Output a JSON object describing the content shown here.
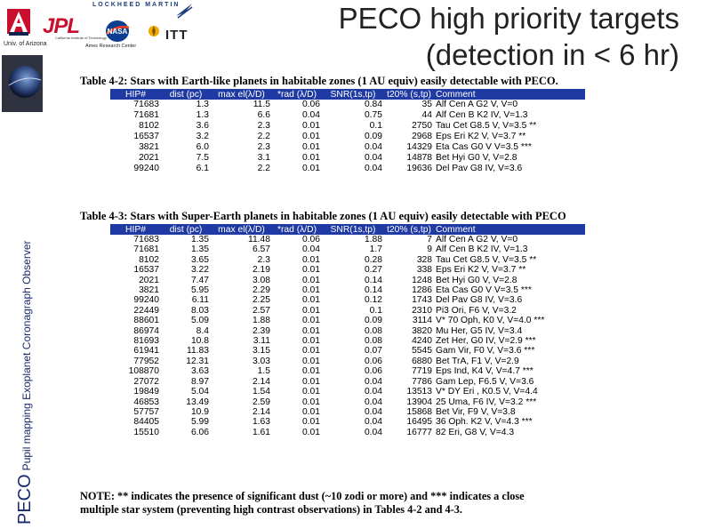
{
  "header": {
    "title_line1": "PECO high priority targets",
    "title_line2": "(detection in < 6 hr)",
    "side_label_big": "PECO",
    "side_label": "Pupil mapping Exoplanet Coronagraph Observer"
  },
  "logos": {
    "ua_text": "Univ. of Arizona",
    "jpl_text": "JPL",
    "jpl_sub": "California Institute of Technology",
    "lm_text": "LOCKHEED MARTIN",
    "ames_text": "Ames Research Center",
    "itt_text": "ITT"
  },
  "table1": {
    "caption": "Table 4-2: Stars with Earth-like planets in habitable zones (1 AU equiv) easily detectable with PECO.",
    "headers": [
      "HIP#",
      "dist (pc)",
      "max el(λ/D)",
      "*rad (λ/D)",
      "SNR(1s,tp)",
      "t20% (s,tp)",
      "Comment"
    ],
    "rows": [
      [
        "71683",
        "1.3",
        "11.5",
        "0.06",
        "0.84",
        "35",
        "Alf Cen A G2 V, V=0"
      ],
      [
        "71681",
        "1.3",
        "6.6",
        "0.04",
        "0.75",
        "44",
        "Alf Cen B K2 IV, V=1.3"
      ],
      [
        "8102",
        "3.6",
        "2.3",
        "0.01",
        "0.1",
        "2750",
        "Tau Cet G8.5 V, V=3.5 **"
      ],
      [
        "16537",
        "3.2",
        "2.2",
        "0.01",
        "0.09",
        "2968",
        "Eps Eri K2 V, V=3.7 **"
      ],
      [
        "3821",
        "6.0",
        "2.3",
        "0.01",
        "0.04",
        "14329",
        "Eta Cas G0 V V=3.5 ***"
      ],
      [
        "2021",
        "7.5",
        "3.1",
        "0.01",
        "0.04",
        "14878",
        "Bet Hyi G0 V, V=2.8"
      ],
      [
        "99240",
        "6.1",
        "2.2",
        "0.01",
        "0.04",
        "19636",
        "Del Pav G8 IV, V=3.6"
      ]
    ]
  },
  "table2": {
    "caption": "Table 4-3: Stars with Super-Earth planets in habitable zones (1 AU equiv) easily detectable with PECO",
    "headers": [
      "HIP#",
      "dist (pc)",
      "max el(λ/D)",
      "*rad (λ/D)",
      "SNR(1s,tp)",
      "t20% (s,tp)",
      "Comment"
    ],
    "rows": [
      [
        "71683",
        "1.35",
        "11.48",
        "0.06",
        "1.88",
        "7",
        "Alf Cen A G2 V, V=0"
      ],
      [
        "71681",
        "1.35",
        "6.57",
        "0.04",
        "1.7",
        "9",
        "Alf Cen B K2 IV, V=1.3"
      ],
      [
        "8102",
        "3.65",
        "2.3",
        "0.01",
        "0.28",
        "328",
        "Tau Cet G8.5 V, V=3.5 **"
      ],
      [
        "16537",
        "3.22",
        "2.19",
        "0.01",
        "0.27",
        "338",
        "Eps Eri K2 V, V=3.7 **"
      ],
      [
        "2021",
        "7.47",
        "3.08",
        "0.01",
        "0.14",
        "1248",
        "Bet Hyi G0 V, V=2.8"
      ],
      [
        "3821",
        "5.95",
        "2.29",
        "0.01",
        "0.14",
        "1286",
        "Eta Cas G0 V V=3.5 ***"
      ],
      [
        "99240",
        "6.11",
        "2.25",
        "0.01",
        "0.12",
        "1743",
        "Del Pav G8 IV, V=3.6"
      ],
      [
        "22449",
        "8.03",
        "2.57",
        "0.01",
        "0.1",
        "2310",
        "Pi3 Ori, F6 V, V=3.2"
      ],
      [
        "88601",
        "5.09",
        "1.88",
        "0.01",
        "0.09",
        "3114",
        "V* 70 Oph, K0 V, V=4.0 ***"
      ],
      [
        "86974",
        "8.4",
        "2.39",
        "0.01",
        "0.08",
        "3820",
        "Mu Her, G5 IV, V=3.4"
      ],
      [
        "81693",
        "10.8",
        "3.11",
        "0.01",
        "0.08",
        "4240",
        "Zet Her, G0 IV, V=2.9 ***"
      ],
      [
        "61941",
        "11.83",
        "3.15",
        "0.01",
        "0.07",
        "5545",
        "Gam Vir, F0 V, V=3.6 ***"
      ],
      [
        "77952",
        "12.31",
        "3.03",
        "0.01",
        "0.06",
        "6880",
        "Bet TrA, F1 V, V=2.9"
      ],
      [
        "108870",
        "3.63",
        "1.5",
        "0.01",
        "0.06",
        "7719",
        "Eps Ind, K4 V, V=4.7 ***"
      ],
      [
        "27072",
        "8.97",
        "2.14",
        "0.01",
        "0.04",
        "7786",
        "Gam Lep, F6.5 V, V=3.6"
      ],
      [
        "19849",
        "5.04",
        "1.54",
        "0.01",
        "0.04",
        "13513",
        "V* DY Eri , K0.5 V, V=4.4"
      ],
      [
        "46853",
        "13.49",
        "2.59",
        "0.01",
        "0.04",
        "13904",
        "25 Uma, F6 IV, V=3.2 ***"
      ],
      [
        "57757",
        "10.9",
        "2.14",
        "0.01",
        "0.04",
        "15868",
        "Bet Vir, F9 V, V=3.8"
      ],
      [
        "84405",
        "5.99",
        "1.63",
        "0.01",
        "0.04",
        "16495",
        "36 Oph. K2 V, V=4.3 ***"
      ],
      [
        "15510",
        "6.06",
        "1.61",
        "0.01",
        "0.04",
        "16777",
        "82 Eri, G8 V, V=4.3"
      ]
    ]
  },
  "note": {
    "line1": "NOTE: ** indicates the presence of significant dust (~10 zodi or more) and *** indicates a close",
    "line2": "multiple star system (preventing high contrast observations) in Tables 4-2 and 4-3."
  },
  "colors": {
    "header_blue": "#1f3aa3",
    "title_text": "#222222",
    "side_label": "#1a2a6c"
  }
}
